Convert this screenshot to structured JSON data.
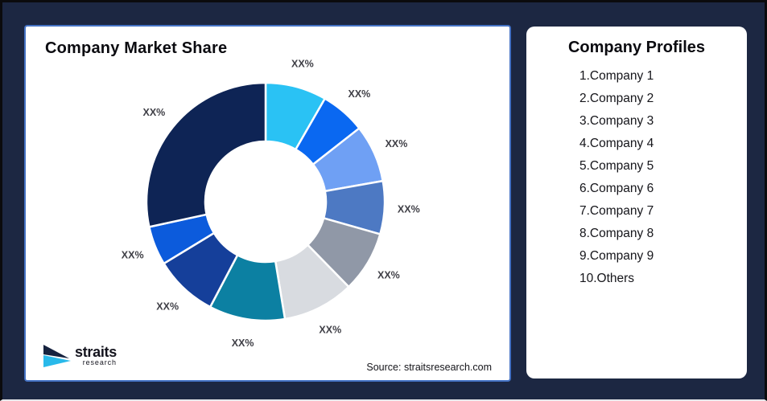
{
  "page": {
    "background": "#1C2742"
  },
  "market_share_card": {
    "title": "Company Market Share",
    "source_text": "Source: straitsresearch.com",
    "border_color": "#4472C4",
    "logo": {
      "brand": "straits",
      "subbrand": "research",
      "arrow_dark_color": "#16223F",
      "arrow_cyan_color": "#29B9EA"
    }
  },
  "profiles_card": {
    "title": "Company Profiles",
    "items": [
      "1.Company 1",
      "2.Company 2",
      "3.Company 3",
      "4.Company 4",
      "5.Company 5",
      "6.Company 6",
      "7.Company 7",
      "8.Company 8",
      "9.Company 9",
      "10.Others"
    ]
  },
  "chart_data": {
    "type": "pie",
    "subtype": "donut",
    "title": "Company Market Share",
    "direction": "clockwise",
    "start_angle_deg": 0,
    "inner_radius_ratio": 0.51,
    "label_color": "#3F3F46",
    "segments": [
      {
        "label": "XX%",
        "value_pct": 8.3,
        "color": "#2AC2F4"
      },
      {
        "label": "XX%",
        "value_pct": 6.1,
        "color": "#0A68F1"
      },
      {
        "label": "XX%",
        "value_pct": 7.8,
        "color": "#6FA0F4"
      },
      {
        "label": "XX%",
        "value_pct": 7.2,
        "color": "#4D79C3"
      },
      {
        "label": "XX%",
        "value_pct": 8.3,
        "color": "#9098A7"
      },
      {
        "label": "XX%",
        "value_pct": 9.7,
        "color": "#D8DBE0"
      },
      {
        "label": "XX%",
        "value_pct": 10.3,
        "color": "#0C80A2"
      },
      {
        "label": "XX%",
        "value_pct": 8.6,
        "color": "#153F9A"
      },
      {
        "label": "XX%",
        "value_pct": 5.3,
        "color": "#0C5BDC"
      },
      {
        "label": "XX%",
        "value_pct": 28.4,
        "color": "#0E2455"
      }
    ]
  }
}
